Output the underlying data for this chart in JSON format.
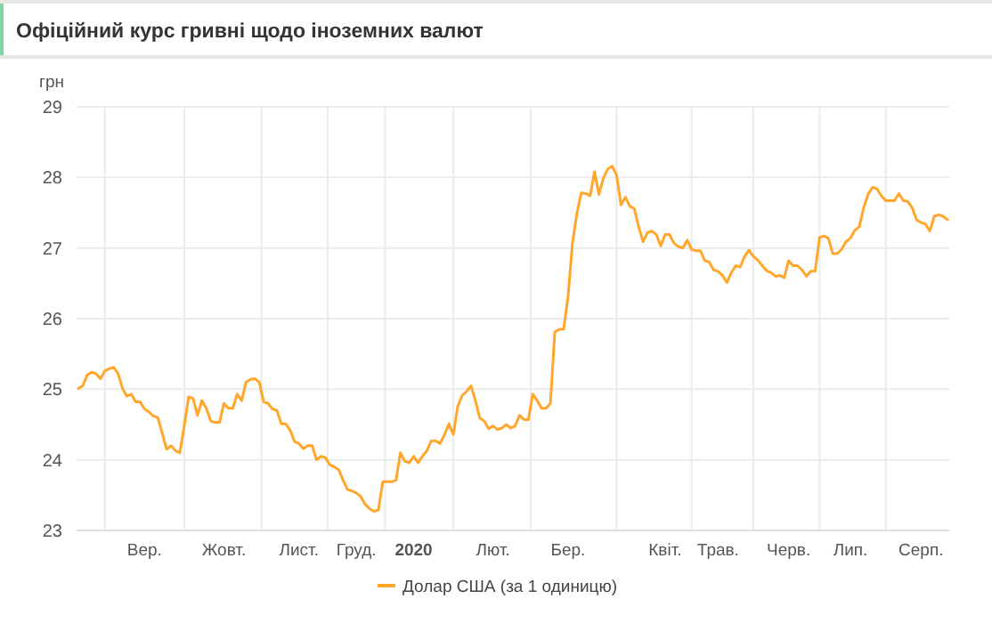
{
  "chart_data": {
    "type": "line",
    "title": "Офіційний курс гривні щодо іноземних валют",
    "ylabel": "грн",
    "ylim": [
      23,
      29
    ],
    "yticks": [
      23,
      24,
      25,
      26,
      27,
      28,
      29
    ],
    "categories": [
      null,
      null,
      null,
      null,
      null,
      null,
      null,
      null,
      null,
      null,
      null,
      null,
      null,
      null,
      null,
      "Вер.",
      null,
      null,
      null,
      null,
      null,
      null,
      null,
      null,
      null,
      null,
      null,
      null,
      null,
      null,
      null,
      null,
      null,
      "Жовт.",
      null,
      null,
      null,
      null,
      null,
      null,
      null,
      null,
      null,
      null,
      null,
      null,
      null,
      null,
      null,
      null,
      "Лист.",
      null,
      null,
      null,
      null,
      null,
      null,
      null,
      null,
      null,
      null,
      null,
      null,
      "Груд.",
      null,
      null,
      null,
      null,
      null,
      null,
      null,
      null,
      null,
      null,
      null,
      null,
      "2020",
      null,
      null,
      null,
      null,
      null,
      null,
      null,
      null,
      null,
      null,
      null,
      null,
      null,
      null,
      null,
      null,
      null,
      "Лют.",
      null,
      null,
      null,
      null,
      null,
      null,
      null,
      null,
      null,
      null,
      null,
      null,
      null,
      null,
      null,
      null,
      "Бер.",
      null,
      null,
      null,
      null,
      null,
      null,
      null,
      null,
      null,
      null,
      null,
      null,
      null,
      null,
      null,
      null,
      null,
      null,
      null,
      null,
      null,
      "Квіт.",
      null,
      null,
      null,
      null,
      null,
      null,
      null,
      null,
      null,
      null,
      null,
      "Трав.",
      null,
      null,
      null,
      null,
      null,
      null,
      null,
      null,
      null,
      null,
      null,
      null,
      null,
      null,
      null,
      "Черв.",
      null,
      null,
      null,
      null,
      null,
      null,
      null,
      null,
      null,
      null,
      null,
      null,
      null,
      "Лип.",
      null,
      null,
      null,
      null,
      null,
      null,
      null,
      null,
      null,
      null,
      null,
      null,
      null,
      null,
      null,
      "Серп.",
      null,
      null,
      null,
      null,
      null,
      null
    ],
    "grid": true,
    "legend": "bottom",
    "marker": "none",
    "line_style": "solid",
    "series": [
      {
        "name": "Долар США (за 1 одиницю)",
        "color": "#ffa62b",
        "values": [
          25.01,
          25.05,
          25.2,
          25.24,
          25.22,
          25.15,
          25.26,
          25.29,
          25.31,
          25.22,
          25.01,
          24.9,
          24.93,
          24.82,
          24.82,
          24.72,
          24.68,
          24.62,
          24.6,
          24.38,
          24.15,
          24.2,
          24.13,
          24.1,
          24.48,
          24.89,
          24.87,
          24.63,
          24.84,
          24.73,
          24.55,
          24.53,
          24.53,
          24.8,
          24.73,
          24.73,
          24.93,
          24.84,
          25.1,
          25.14,
          25.15,
          25.1,
          24.82,
          24.8,
          24.72,
          24.7,
          24.51,
          24.51,
          24.42,
          24.26,
          24.23,
          24.16,
          24.2,
          24.2,
          24.0,
          24.05,
          24.03,
          23.93,
          23.9,
          23.86,
          23.71,
          23.58,
          23.56,
          23.53,
          23.48,
          23.37,
          23.31,
          23.27,
          23.29,
          23.69,
          23.69,
          23.69,
          23.71,
          24.1,
          23.98,
          23.96,
          24.05,
          23.96,
          24.05,
          24.13,
          24.27,
          24.27,
          24.23,
          24.36,
          24.51,
          24.36,
          24.76,
          24.91,
          24.97,
          25.05,
          24.84,
          24.59,
          24.55,
          24.44,
          24.48,
          24.43,
          24.45,
          24.5,
          24.45,
          24.48,
          24.63,
          24.57,
          24.57,
          24.93,
          24.84,
          24.73,
          24.73,
          24.8,
          25.81,
          25.85,
          25.85,
          26.31,
          27.07,
          27.49,
          27.78,
          27.77,
          27.74,
          28.08,
          27.76,
          27.99,
          28.12,
          28.16,
          28.03,
          27.61,
          27.72,
          27.59,
          27.56,
          27.3,
          27.09,
          27.22,
          27.24,
          27.19,
          27.03,
          27.19,
          27.19,
          27.07,
          27.02,
          27.0,
          27.11,
          26.98,
          26.96,
          26.96,
          26.82,
          26.8,
          26.69,
          26.67,
          26.61,
          26.51,
          26.65,
          26.75,
          26.73,
          26.88,
          26.97,
          26.88,
          26.83,
          26.75,
          26.68,
          26.65,
          26.6,
          26.61,
          26.58,
          26.82,
          26.75,
          26.75,
          26.69,
          26.6,
          26.67,
          26.67,
          27.15,
          27.17,
          27.14,
          26.92,
          26.92,
          26.98,
          27.09,
          27.14,
          27.25,
          27.3,
          27.57,
          27.76,
          27.86,
          27.84,
          27.74,
          27.67,
          27.67,
          27.67,
          27.77,
          27.67,
          27.66,
          27.57,
          27.4,
          27.36,
          27.34,
          27.24,
          27.45,
          27.47,
          27.45,
          27.4
        ]
      }
    ]
  }
}
